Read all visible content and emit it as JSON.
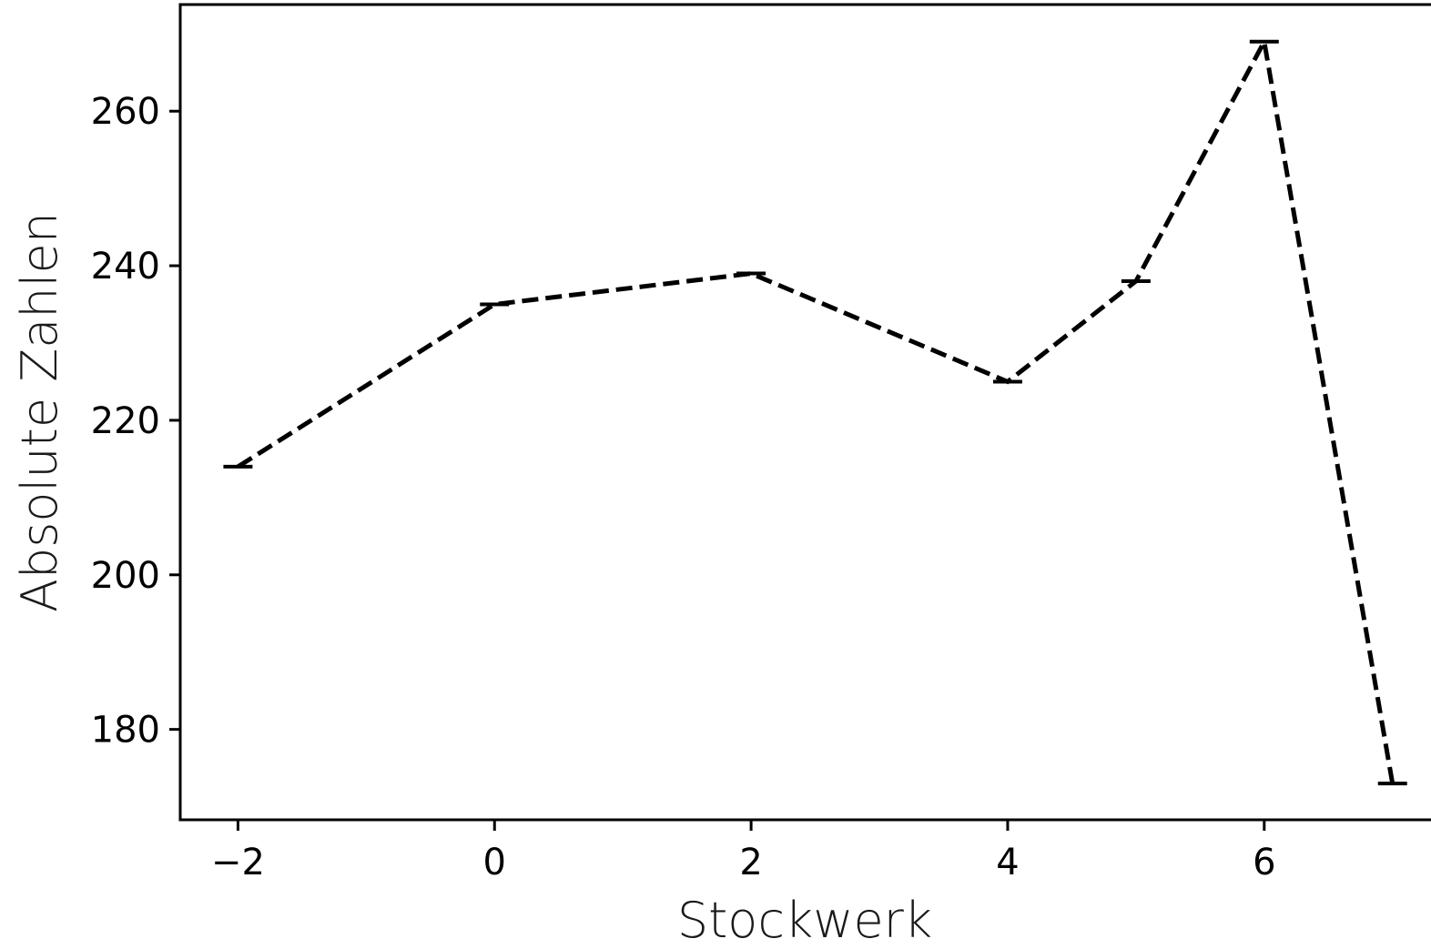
{
  "chart_data": {
    "type": "line",
    "xlabel": "Stockwerk",
    "ylabel": "Absolute Zahlen",
    "x_ticks": [
      "−2",
      "0",
      "2",
      "4",
      "6"
    ],
    "y_ticks": [
      "180",
      "200",
      "220",
      "240",
      "260"
    ],
    "x_tick_values": [
      -2,
      0,
      2,
      4,
      6
    ],
    "y_tick_values": [
      180,
      200,
      220,
      240,
      260
    ],
    "xlim": [
      -2.45,
      7.3
    ],
    "ylim": [
      168.3,
      273.8
    ],
    "grid": false,
    "line_style": "dashed",
    "line_color": "#000000",
    "marker": "horizontal-bar",
    "series": [
      {
        "x": [
          -2,
          0,
          2,
          4,
          5,
          6,
          7
        ],
        "y": [
          214,
          235,
          239,
          225,
          238,
          269,
          173
        ]
      }
    ]
  }
}
